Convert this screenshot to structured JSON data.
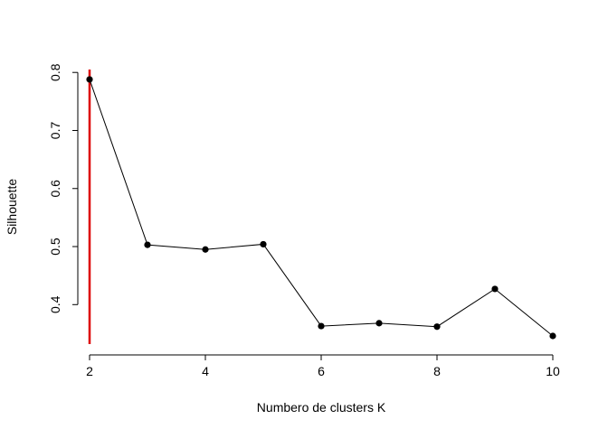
{
  "chart_data": {
    "type": "line",
    "title": "",
    "xlabel": "Numbero de clusters K",
    "ylabel": "Silhouette",
    "x": [
      2,
      3,
      4,
      5,
      6,
      7,
      8,
      9,
      10
    ],
    "series": [
      {
        "values": [
          0.788,
          0.503,
          0.495,
          0.504,
          0.363,
          0.368,
          0.362,
          0.427,
          0.346
        ],
        "color": "#000000",
        "marker": "filled-circle"
      }
    ],
    "xticks": [
      "2",
      "4",
      "6",
      "8",
      "10"
    ],
    "xtick_values": [
      2,
      4,
      6,
      8,
      10
    ],
    "yticks": [
      "0.4",
      "0.5",
      "0.6",
      "0.7",
      "0.8"
    ],
    "ytick_values": [
      0.4,
      0.5,
      0.6,
      0.7,
      0.8
    ],
    "xlim": [
      2,
      10
    ],
    "ylim": [
      0.332,
      0.805
    ],
    "grid": false,
    "vline": {
      "x": 2,
      "color": "#dd0000"
    }
  }
}
